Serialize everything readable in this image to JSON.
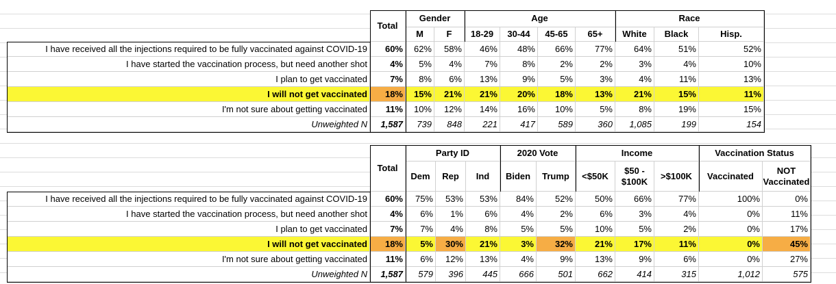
{
  "tables": [
    {
      "total_header": "Total",
      "groups": [
        {
          "name": "Gender",
          "columns": [
            "M",
            "F"
          ]
        },
        {
          "name": "Age",
          "columns": [
            "18-29",
            "30-44",
            "45-65",
            "65+"
          ]
        },
        {
          "name": "Race",
          "columns": [
            "White",
            "Black",
            "Hisp."
          ]
        }
      ],
      "rows": [
        {
          "label": "I have received all the injections required to be fully vaccinated against COVID-19",
          "total": "60%",
          "values": [
            "62%",
            "58%",
            "46%",
            "48%",
            "66%",
            "77%",
            "64%",
            "51%",
            "52%"
          ]
        },
        {
          "label": "I have started the vaccination process, but need another shot",
          "total": "4%",
          "values": [
            "5%",
            "4%",
            "7%",
            "8%",
            "2%",
            "2%",
            "3%",
            "4%",
            "10%"
          ]
        },
        {
          "label": "I plan to get vaccinated",
          "total": "7%",
          "values": [
            "8%",
            "6%",
            "13%",
            "9%",
            "5%",
            "3%",
            "4%",
            "11%",
            "13%"
          ]
        },
        {
          "label": "I will not get vaccinated",
          "total": "18%",
          "values": [
            "15%",
            "21%",
            "21%",
            "20%",
            "18%",
            "13%",
            "21%",
            "15%",
            "11%"
          ]
        },
        {
          "label": "I'm not sure about getting vaccinated",
          "total": "11%",
          "values": [
            "10%",
            "12%",
            "14%",
            "16%",
            "10%",
            "5%",
            "8%",
            "19%",
            "15%"
          ]
        },
        {
          "label": "Unweighted N",
          "total": "1,587",
          "values": [
            "739",
            "848",
            "221",
            "417",
            "589",
            "360",
            "1,085",
            "199",
            "154"
          ]
        }
      ]
    },
    {
      "total_header": "Total",
      "groups": [
        {
          "name": "Party ID",
          "columns": [
            "Dem",
            "Rep",
            "Ind"
          ]
        },
        {
          "name": "2020 Vote",
          "columns": [
            "Biden",
            "Trump"
          ]
        },
        {
          "name": "Income",
          "columns": [
            "<$50K",
            "$50 - $100K",
            ">$100K"
          ]
        },
        {
          "name": "Vaccination Status",
          "columns": [
            "Vaccinated",
            "NOT Vaccinated"
          ]
        }
      ],
      "rows": [
        {
          "label": "I have received all the injections required to be fully vaccinated against COVID-19",
          "total": "60%",
          "values": [
            "75%",
            "53%",
            "53%",
            "84%",
            "52%",
            "50%",
            "66%",
            "77%",
            "100%",
            "0%"
          ]
        },
        {
          "label": "I have started the vaccination process, but need another shot",
          "total": "4%",
          "values": [
            "6%",
            "1%",
            "6%",
            "4%",
            "2%",
            "6%",
            "3%",
            "4%",
            "0%",
            "11%"
          ]
        },
        {
          "label": "I plan to get vaccinated",
          "total": "7%",
          "values": [
            "7%",
            "4%",
            "8%",
            "5%",
            "5%",
            "10%",
            "5%",
            "2%",
            "0%",
            "17%"
          ]
        },
        {
          "label": "I will not get vaccinated",
          "total": "18%",
          "values": [
            "5%",
            "30%",
            "21%",
            "3%",
            "32%",
            "21%",
            "17%",
            "11%",
            "0%",
            "45%"
          ]
        },
        {
          "label": "I'm not sure about getting vaccinated",
          "total": "11%",
          "values": [
            "6%",
            "12%",
            "13%",
            "4%",
            "9%",
            "13%",
            "9%",
            "6%",
            "0%",
            "27%"
          ]
        },
        {
          "label": "Unweighted N",
          "total": "1,587",
          "values": [
            "579",
            "396",
            "445",
            "666",
            "501",
            "662",
            "414",
            "315",
            "1,012",
            "575"
          ]
        }
      ]
    }
  ]
}
